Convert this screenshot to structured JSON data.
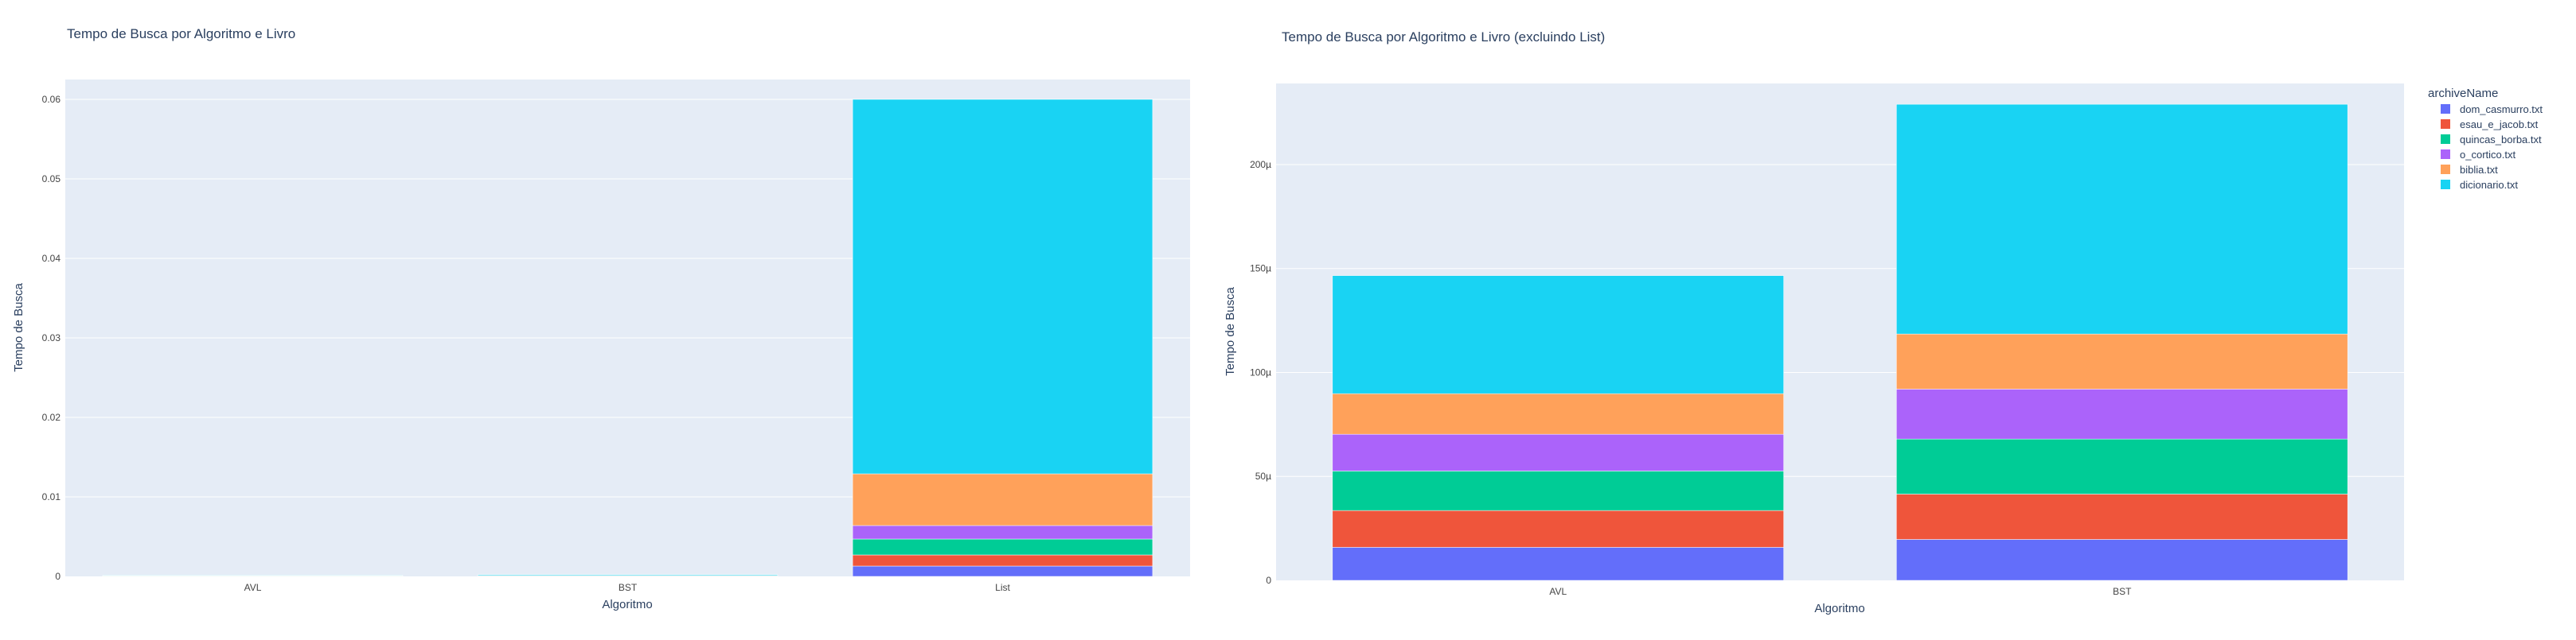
{
  "colors": {
    "plot_bg": "#E5ECF6",
    "grid": "#ffffff",
    "text": "#2a3f5f",
    "tick_text": "#444444"
  },
  "legend": {
    "title": "archiveName",
    "placement": "right of second chart, top",
    "items": [
      {
        "name": "dom_casmurro.txt",
        "color": "#636EFA"
      },
      {
        "name": "esau_e_jacob.txt",
        "color": "#EF553B"
      },
      {
        "name": "quincas_borba.txt",
        "color": "#00CC96"
      },
      {
        "name": "o_cortico.txt",
        "color": "#AB63FA"
      },
      {
        "name": "biblia.txt",
        "color": "#FFA15A"
      },
      {
        "name": "dicionario.txt",
        "color": "#19D3F3"
      }
    ]
  },
  "chart_data": [
    {
      "type": "bar",
      "stacked": true,
      "title": "Tempo de Busca por Algoritmo e Livro",
      "xlabel": "Algoritmo",
      "ylabel": "Tempo de Busca",
      "categories": [
        "AVL",
        "BST",
        "List"
      ],
      "ylim": [
        0,
        0.0625
      ],
      "yticks": [
        0,
        0.01,
        0.02,
        0.03,
        0.04,
        0.05,
        0.06
      ],
      "ytick_labels": [
        "0",
        "0.01",
        "0.02",
        "0.03",
        "0.04",
        "0.05",
        "0.06"
      ],
      "grid": true,
      "series": [
        {
          "name": "dom_casmurro.txt",
          "values": [
            1.59e-05,
            1.97e-05,
            0.0013
          ]
        },
        {
          "name": "esau_e_jacob.txt",
          "values": [
            1.77e-05,
            2.18e-05,
            0.0014
          ]
        },
        {
          "name": "quincas_borba.txt",
          "values": [
            1.9e-05,
            2.65e-05,
            0.002
          ]
        },
        {
          "name": "o_cortico.txt",
          "values": [
            1.77e-05,
            2.4e-05,
            0.0017
          ]
        },
        {
          "name": "biblia.txt",
          "values": [
            1.95e-05,
            2.65e-05,
            0.0065
          ]
        },
        {
          "name": "dicionario.txt",
          "values": [
            5.68e-05,
            0.0001105,
            0.0471
          ]
        }
      ]
    },
    {
      "type": "bar",
      "stacked": true,
      "title": "Tempo de Busca por Algoritmo e Livro (excluindo List)",
      "xlabel": "Algoritmo",
      "ylabel": "Tempo de Busca",
      "categories": [
        "AVL",
        "BST"
      ],
      "ylim": [
        0,
        0.000239
      ],
      "yticks": [
        0,
        5e-05,
        0.0001,
        0.00015,
        0.0002
      ],
      "ytick_labels": [
        "0",
        "50µ",
        "100µ",
        "150µ",
        "200µ"
      ],
      "grid": true,
      "series": [
        {
          "name": "dom_casmurro.txt",
          "values": [
            1.59e-05,
            1.97e-05
          ]
        },
        {
          "name": "esau_e_jacob.txt",
          "values": [
            1.77e-05,
            2.18e-05
          ]
        },
        {
          "name": "quincas_borba.txt",
          "values": [
            1.9e-05,
            2.65e-05
          ]
        },
        {
          "name": "o_cortico.txt",
          "values": [
            1.77e-05,
            2.4e-05
          ]
        },
        {
          "name": "biblia.txt",
          "values": [
            1.95e-05,
            2.65e-05
          ]
        },
        {
          "name": "dicionario.txt",
          "values": [
            5.68e-05,
            0.0001105
          ]
        }
      ]
    }
  ]
}
